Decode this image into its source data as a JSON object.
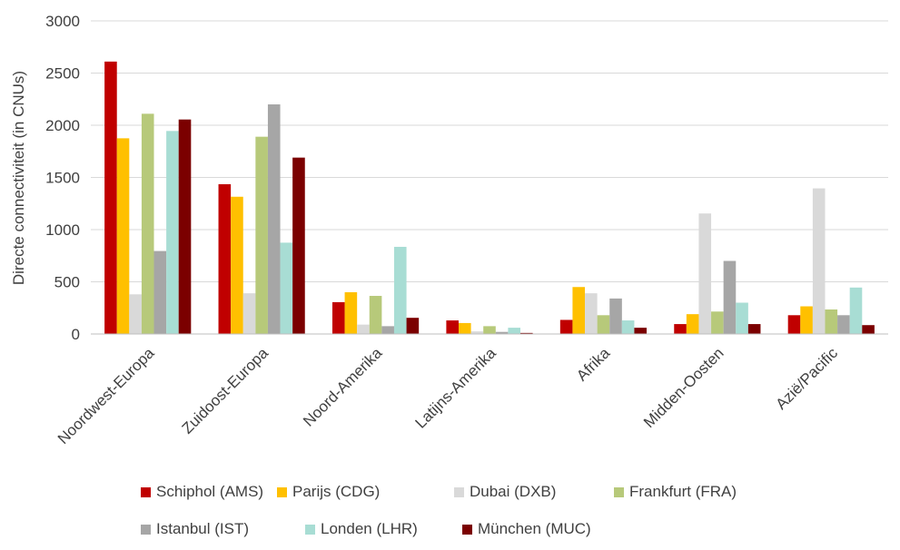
{
  "chart_data": {
    "type": "bar",
    "title": "",
    "xlabel": "",
    "ylabel": "Directe connectiviteit (in CNUs)",
    "ylim": [
      0,
      3000
    ],
    "yticks": [
      0,
      500,
      1000,
      1500,
      2000,
      2500,
      3000
    ],
    "grid": true,
    "legend_position": "bottom",
    "categories": [
      "Noordwest-Europa",
      "Zuidoost-Europa",
      "Noord-Amerika",
      "Latijns-Amerika",
      "Afrika",
      "Midden-Oosten",
      "Azië/Pacific"
    ],
    "series": [
      {
        "name": "Schiphol (AMS)",
        "color": "#C00000",
        "values": [
          2610,
          1435,
          305,
          130,
          135,
          95,
          180
        ]
      },
      {
        "name": "Parijs (CDG)",
        "color": "#FFC000",
        "values": [
          1875,
          1315,
          400,
          105,
          450,
          190,
          265
        ]
      },
      {
        "name": "Dubai (DXB)",
        "color": "#D9D9D9",
        "values": [
          380,
          390,
          90,
          25,
          390,
          1155,
          1395
        ]
      },
      {
        "name": "Frankfurt (FRA)",
        "color": "#B7C97A",
        "values": [
          2110,
          1890,
          365,
          75,
          180,
          215,
          235
        ]
      },
      {
        "name": "Istanbul (IST)",
        "color": "#A6A6A6",
        "values": [
          795,
          2200,
          75,
          20,
          340,
          700,
          180
        ]
      },
      {
        "name": "Londen (LHR)",
        "color": "#A8DDD4",
        "values": [
          1945,
          875,
          835,
          60,
          130,
          300,
          445
        ]
      },
      {
        "name": "München (MUC)",
        "color": "#7B0000",
        "values": [
          2055,
          1690,
          155,
          10,
          60,
          95,
          85
        ]
      }
    ]
  }
}
